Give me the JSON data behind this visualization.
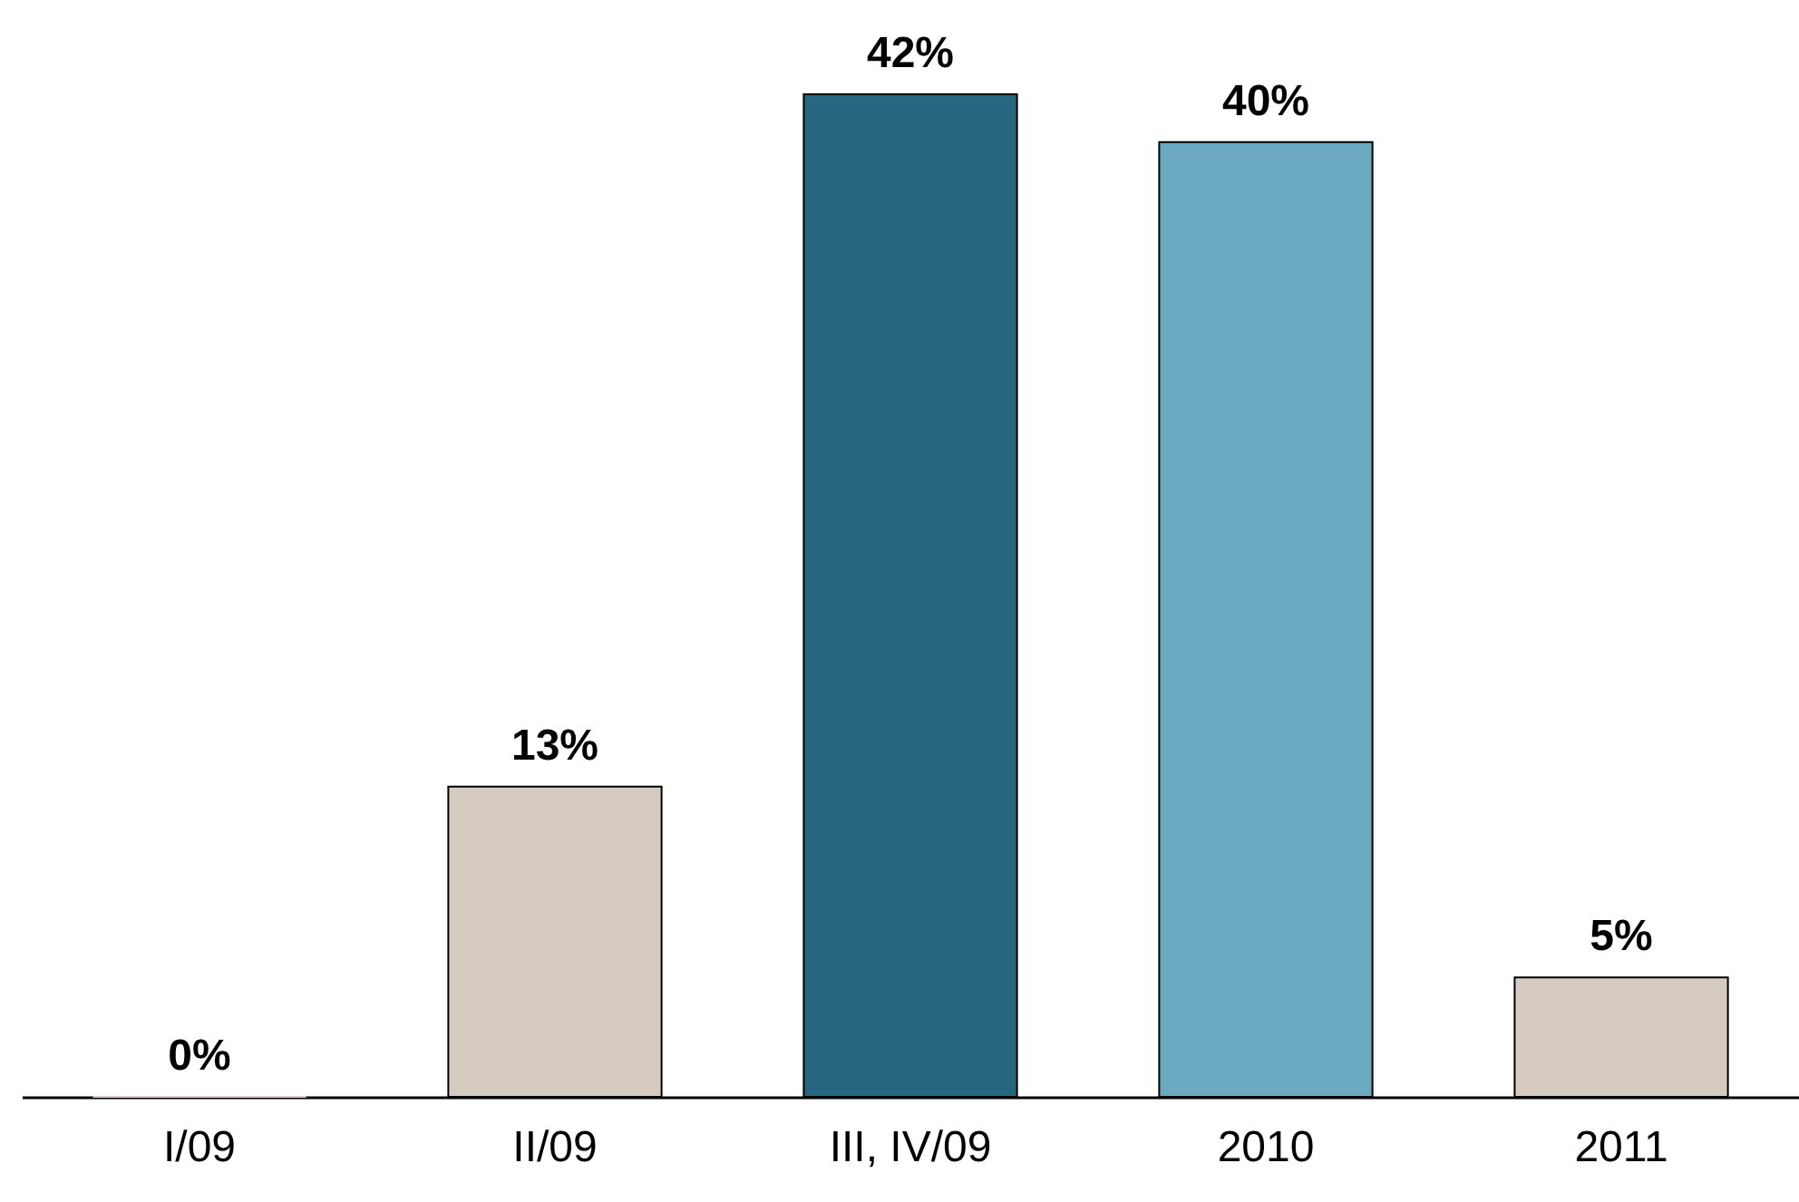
{
  "chart_data": {
    "type": "bar",
    "categories": [
      "I/09",
      "II/09",
      "III, IV/09",
      "2010",
      "2011"
    ],
    "values": [
      0,
      13,
      42,
      40,
      5
    ],
    "colors": [
      "#d5cbc1",
      "#d5cbc1",
      "#26677f",
      "#6aa9bf",
      "#d5cbc1"
    ],
    "value_labels": [
      "0%",
      "13%",
      "42%",
      "40%",
      "5%"
    ],
    "grid": false
  }
}
